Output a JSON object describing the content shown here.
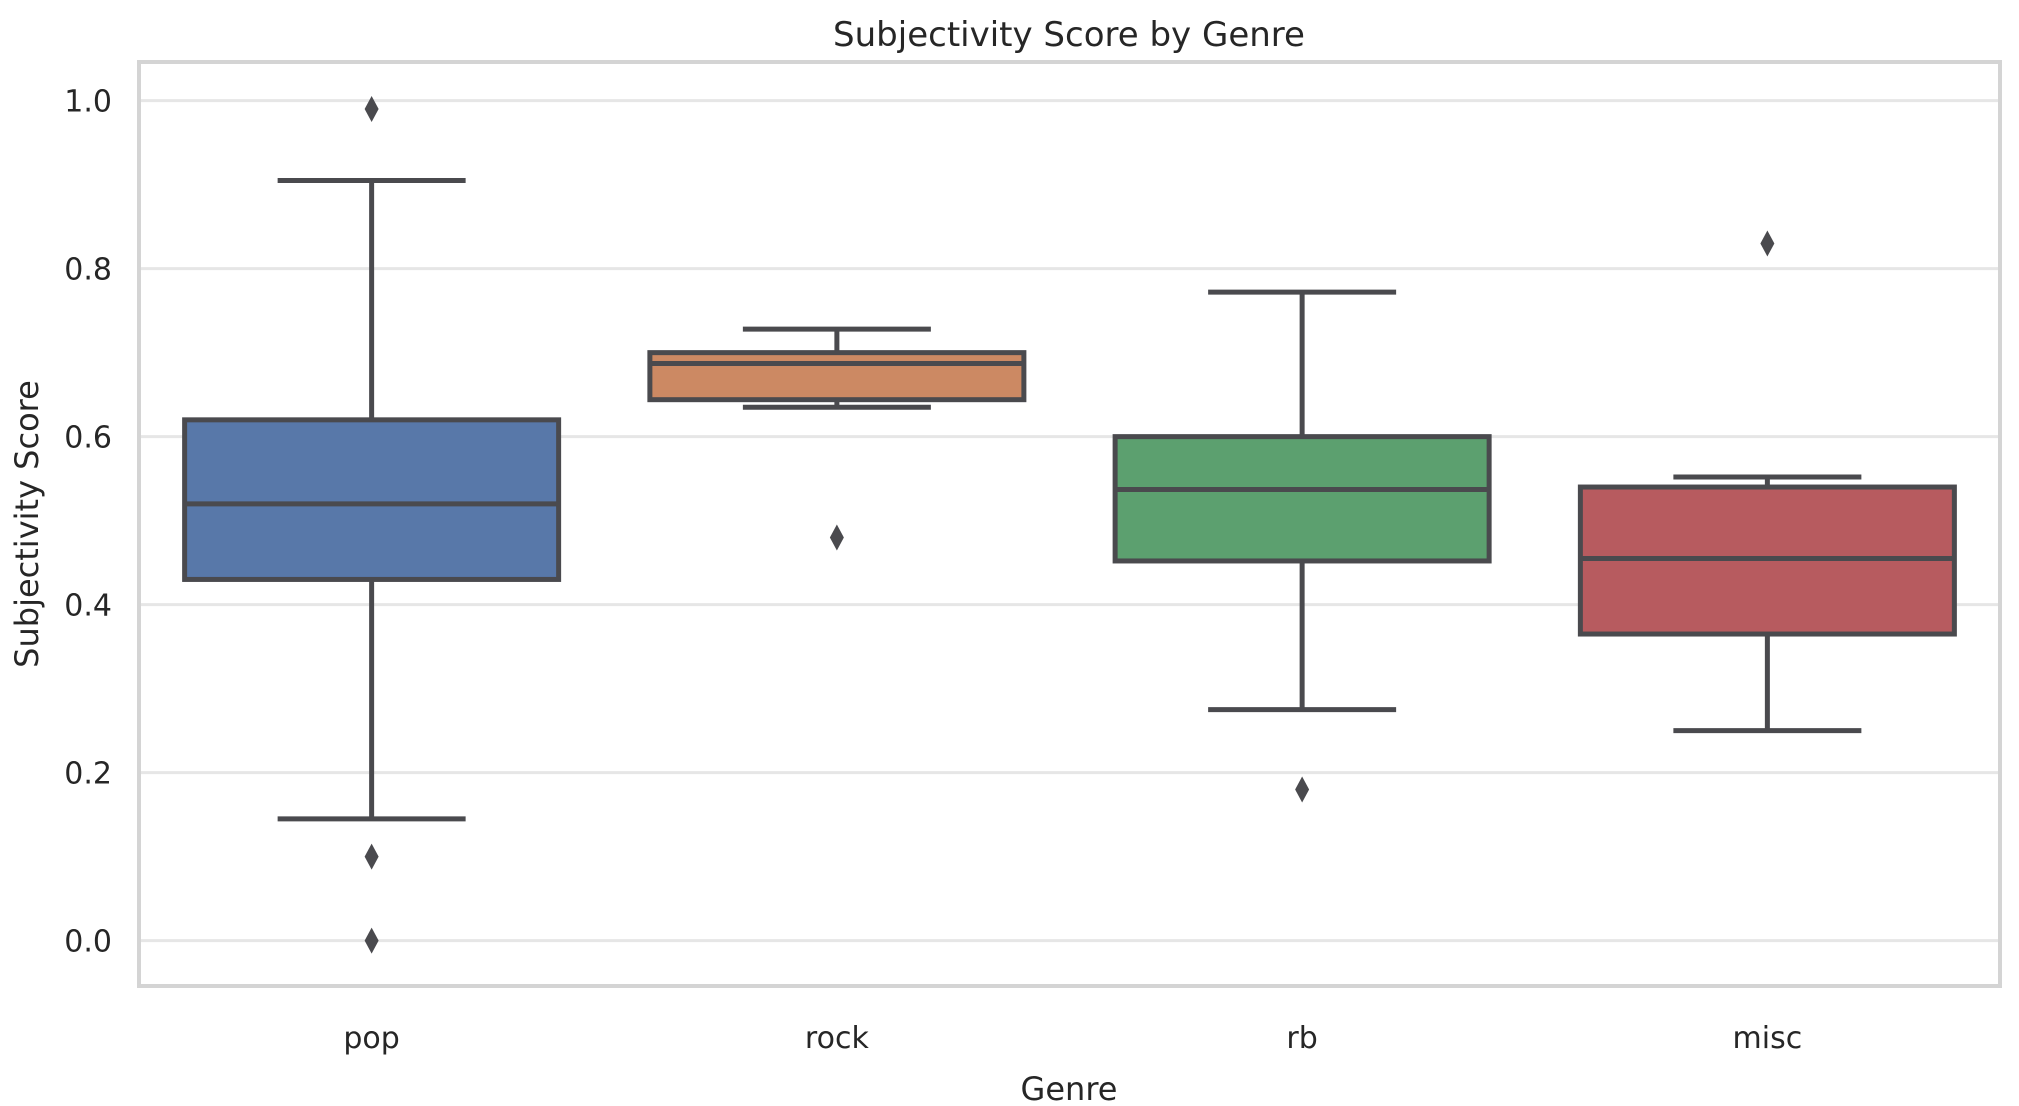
{
  "title": "Subjectivity Score by Genre",
  "chart_data": {
    "type": "box",
    "title": "Subjectivity Score by Genre",
    "xlabel": "Genre",
    "ylabel": "Subjectivity Score",
    "categories": [
      "pop",
      "rock",
      "rb",
      "misc"
    ],
    "ytick_labels": [
      "0.0",
      "0.2",
      "0.4",
      "0.6",
      "0.8",
      "1.0"
    ],
    "yticks": [
      0.0,
      0.2,
      0.4,
      0.6,
      0.8,
      1.0
    ],
    "ylim": [
      -0.054,
      1.046
    ],
    "grid": true,
    "legend": "none",
    "series": [
      {
        "name": "pop",
        "color": "#5878A9",
        "whisker_low": 0.145,
        "q1": 0.43,
        "median": 0.52,
        "q3": 0.62,
        "whisker_high": 0.905,
        "outliers": [
          0.99,
          0.1,
          0.0
        ]
      },
      {
        "name": "rock",
        "color": "#CC8963",
        "whisker_low": 0.635,
        "q1": 0.644,
        "median": 0.687,
        "q3": 0.7,
        "whisker_high": 0.728,
        "outliers": [
          0.48
        ]
      },
      {
        "name": "rb",
        "color": "#5CA06F",
        "whisker_low": 0.275,
        "q1": 0.452,
        "median": 0.537,
        "q3": 0.6,
        "whisker_high": 0.772,
        "outliers": [
          0.18
        ]
      },
      {
        "name": "misc",
        "color": "#B75B5F",
        "whisker_low": 0.25,
        "q1": 0.365,
        "median": 0.455,
        "q3": 0.54,
        "whisker_high": 0.552,
        "outliers": [
          0.83
        ]
      }
    ],
    "style": {
      "line_color": "#4A4A4E",
      "grid_color": "#E6E6E6",
      "spine_color": "#D4D4D4",
      "text_color": "#262626",
      "background": "#FFFFFF"
    }
  }
}
